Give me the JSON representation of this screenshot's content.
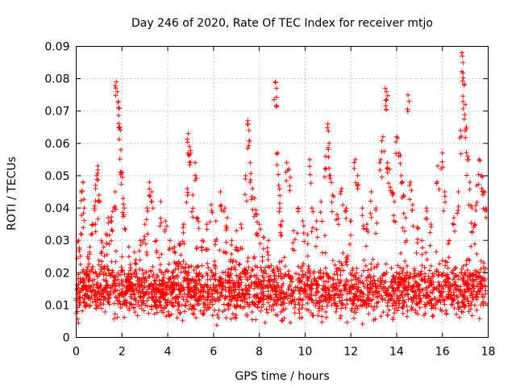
{
  "chart_data": {
    "type": "scatter",
    "title": "Day 246 of 2020, Rate Of TEC Index for receiver mtjo",
    "xlabel": "GPS time / hours",
    "ylabel": "ROTI / TECUs",
    "xlim": [
      0,
      18
    ],
    "ylim": [
      0,
      0.09
    ],
    "xticks": [
      0,
      2,
      4,
      6,
      8,
      10,
      12,
      14,
      16,
      18
    ],
    "xtick_labels": [
      "0",
      "2",
      "4",
      "6",
      "8",
      "10",
      "12",
      "14",
      "16",
      "18"
    ],
    "yticks": [
      0,
      0.01,
      0.02,
      0.03,
      0.04,
      0.05,
      0.06,
      0.07,
      0.08,
      0.09
    ],
    "ytick_labels": [
      "0",
      "0.01",
      "0.02",
      "0.03",
      "0.04",
      "0.05",
      "0.06",
      "0.07",
      "0.08",
      "0.09"
    ],
    "grid": true,
    "marker": "+",
    "marker_color": "#ff0000",
    "series": [
      {
        "name": "ROTI",
        "points": [
          [
            0.05,
            0.008
          ],
          [
            0.1,
            0.03
          ],
          [
            0.2,
            0.032
          ],
          [
            0.25,
            0.045
          ],
          [
            0.3,
            0.048
          ],
          [
            0.35,
            0.04
          ],
          [
            0.5,
            0.025
          ],
          [
            0.6,
            0.028
          ],
          [
            0.7,
            0.035
          ],
          [
            0.8,
            0.04
          ],
          [
            0.85,
            0.047
          ],
          [
            0.9,
            0.05
          ],
          [
            0.95,
            0.053
          ],
          [
            1.0,
            0.044
          ],
          [
            1.1,
            0.03
          ],
          [
            1.2,
            0.028
          ],
          [
            1.3,
            0.032
          ],
          [
            1.4,
            0.037
          ],
          [
            1.5,
            0.036
          ],
          [
            1.6,
            0.039
          ],
          [
            1.7,
            0.045
          ],
          [
            1.75,
            0.079
          ],
          [
            1.8,
            0.076
          ],
          [
            1.85,
            0.071
          ],
          [
            1.9,
            0.065
          ],
          [
            1.95,
            0.058
          ],
          [
            2.0,
            0.051
          ],
          [
            2.05,
            0.043
          ],
          [
            2.1,
            0.04
          ],
          [
            2.3,
            0.028
          ],
          [
            2.6,
            0.024
          ],
          [
            2.8,
            0.03
          ],
          [
            3.0,
            0.035
          ],
          [
            3.1,
            0.04
          ],
          [
            3.2,
            0.048
          ],
          [
            3.3,
            0.045
          ],
          [
            3.5,
            0.03
          ],
          [
            3.7,
            0.042
          ],
          [
            3.9,
            0.036
          ],
          [
            4.1,
            0.03
          ],
          [
            4.3,
            0.028
          ],
          [
            4.5,
            0.029
          ],
          [
            4.7,
            0.035
          ],
          [
            4.85,
            0.046
          ],
          [
            4.9,
            0.063
          ],
          [
            4.95,
            0.059
          ],
          [
            5.0,
            0.057
          ],
          [
            5.1,
            0.044
          ],
          [
            5.2,
            0.054
          ],
          [
            5.3,
            0.037
          ],
          [
            5.5,
            0.03
          ],
          [
            5.7,
            0.035
          ],
          [
            5.9,
            0.041
          ],
          [
            6.1,
            0.036
          ],
          [
            6.3,
            0.045
          ],
          [
            6.5,
            0.04
          ],
          [
            6.6,
            0.037
          ],
          [
            6.8,
            0.03
          ],
          [
            7.0,
            0.033
          ],
          [
            7.2,
            0.035
          ],
          [
            7.4,
            0.05
          ],
          [
            7.5,
            0.067
          ],
          [
            7.55,
            0.064
          ],
          [
            7.6,
            0.054
          ],
          [
            7.7,
            0.046
          ],
          [
            7.8,
            0.043
          ],
          [
            7.9,
            0.038
          ],
          [
            8.0,
            0.035
          ],
          [
            8.2,
            0.031
          ],
          [
            8.4,
            0.03
          ],
          [
            8.7,
            0.079
          ],
          [
            8.75,
            0.077
          ],
          [
            8.8,
            0.057
          ],
          [
            8.85,
            0.047
          ],
          [
            8.9,
            0.04
          ],
          [
            9.0,
            0.036
          ],
          [
            9.2,
            0.054
          ],
          [
            9.3,
            0.052
          ],
          [
            9.5,
            0.033
          ],
          [
            9.7,
            0.04
          ],
          [
            9.9,
            0.036
          ],
          [
            10.2,
            0.055
          ],
          [
            10.3,
            0.04
          ],
          [
            10.5,
            0.036
          ],
          [
            10.7,
            0.042
          ],
          [
            10.9,
            0.056
          ],
          [
            11.0,
            0.066
          ],
          [
            11.05,
            0.06
          ],
          [
            11.1,
            0.05
          ],
          [
            11.2,
            0.044
          ],
          [
            11.4,
            0.038
          ],
          [
            11.6,
            0.046
          ],
          [
            11.8,
            0.04
          ],
          [
            12.0,
            0.036
          ],
          [
            12.2,
            0.055
          ],
          [
            12.3,
            0.05
          ],
          [
            12.5,
            0.04
          ],
          [
            12.7,
            0.035
          ],
          [
            12.9,
            0.045
          ],
          [
            13.1,
            0.04
          ],
          [
            13.3,
            0.055
          ],
          [
            13.4,
            0.062
          ],
          [
            13.5,
            0.077
          ],
          [
            13.55,
            0.076
          ],
          [
            13.6,
            0.054
          ],
          [
            13.7,
            0.052
          ],
          [
            13.8,
            0.045
          ],
          [
            13.9,
            0.042
          ],
          [
            14.0,
            0.062
          ],
          [
            14.1,
            0.057
          ],
          [
            14.2,
            0.05
          ],
          [
            14.3,
            0.044
          ],
          [
            14.4,
            0.037
          ],
          [
            14.5,
            0.075
          ],
          [
            14.6,
            0.048
          ],
          [
            14.7,
            0.041
          ],
          [
            14.9,
            0.034
          ],
          [
            15.1,
            0.03
          ],
          [
            15.3,
            0.04
          ],
          [
            15.5,
            0.035
          ],
          [
            15.8,
            0.053
          ],
          [
            16.0,
            0.057
          ],
          [
            16.1,
            0.045
          ],
          [
            16.3,
            0.03
          ],
          [
            16.5,
            0.037
          ],
          [
            16.7,
            0.045
          ],
          [
            16.8,
            0.064
          ],
          [
            16.85,
            0.088
          ],
          [
            16.9,
            0.085
          ],
          [
            16.95,
            0.078
          ],
          [
            17.0,
            0.072
          ],
          [
            17.05,
            0.065
          ],
          [
            17.1,
            0.056
          ],
          [
            17.2,
            0.048
          ],
          [
            17.3,
            0.04
          ],
          [
            17.4,
            0.035
          ],
          [
            17.5,
            0.047
          ],
          [
            17.6,
            0.055
          ],
          [
            17.7,
            0.05
          ],
          [
            17.8,
            0.045
          ],
          [
            17.9,
            0.04
          ]
        ]
      }
    ],
    "dense_band": {
      "note": "dense cloud of points across full time range",
      "y_min": 0.003,
      "y_max": 0.025,
      "y_center": 0.012
    }
  }
}
